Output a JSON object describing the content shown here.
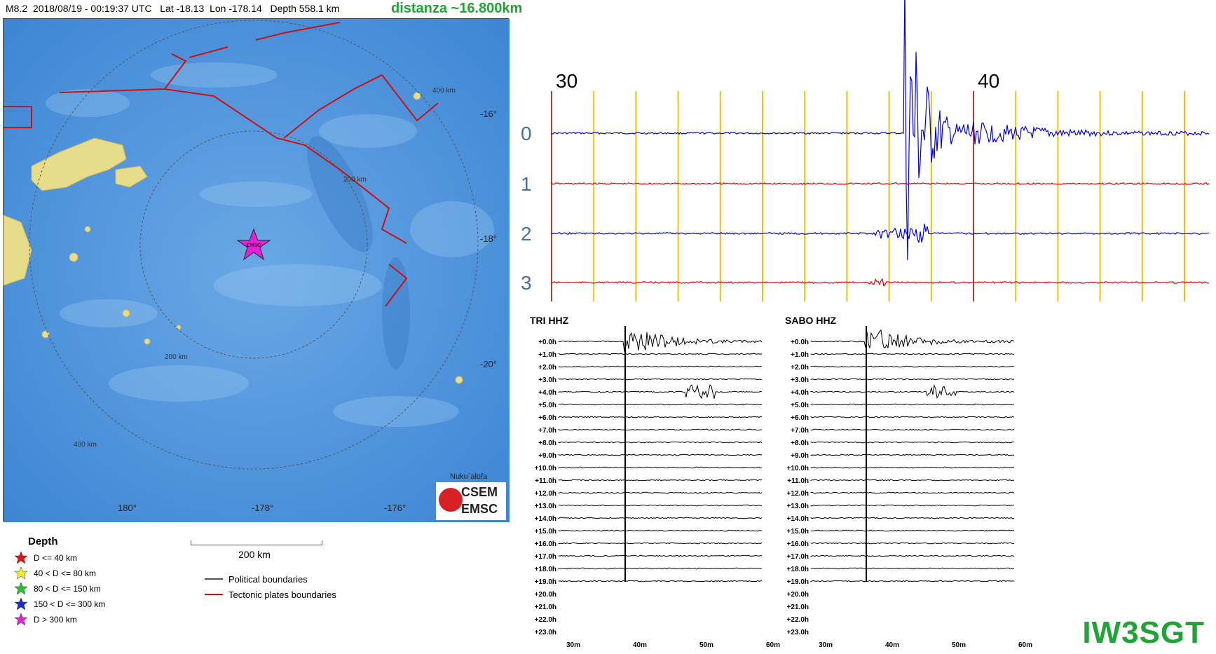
{
  "header": {
    "magnitude": "M8.2",
    "datetime": "2018/08/19 - 00:19:37 UTC",
    "lat": "Lat -18.13",
    "lon": "Lon -178.14",
    "depth": "Depth 558.1 km",
    "distance": "distanza ~16.800km"
  },
  "map": {
    "lat_labels": [
      "-16°",
      "-18°",
      "-20°"
    ],
    "lon_labels": [
      "180°",
      "-178°",
      "-176°"
    ],
    "ring_labels": [
      "400 km",
      "200 km",
      "200 km",
      "400 km"
    ],
    "epicenter_label": "EMSC",
    "city": "Nuku`alofa",
    "logo_line1": "CSEM",
    "logo_line2": "EMSC"
  },
  "legend": {
    "title": "Depth",
    "items": [
      {
        "label": "D <= 40 km",
        "color": "#e8121a"
      },
      {
        "label": "40 < D <= 80 km",
        "color": "#f2ee2a"
      },
      {
        "label": "80 < D <= 150 km",
        "color": "#22c42a"
      },
      {
        "label": "150 < D <= 300 km",
        "color": "#1c2bd6"
      },
      {
        "label": "D > 300 km",
        "color": "#e81fd6"
      }
    ]
  },
  "scale": {
    "label": "200 km"
  },
  "boundaries": {
    "political": "Political boundaries",
    "tectonic": "Tectonic plates boundaries",
    "political_color": "#555555",
    "tectonic_color": "#cc1111"
  },
  "seismogram": {
    "time_labels": [
      "30",
      "40"
    ],
    "channel_labels": [
      "0",
      "1",
      "2",
      "3"
    ],
    "channel_colors": [
      "#0000e0",
      "#e00000",
      "#0000e0",
      "#e00000"
    ]
  },
  "helicorders": [
    {
      "title": "TRI HHZ"
    },
    {
      "title": "SABO HHZ"
    }
  ],
  "helicorder_rows": [
    "+0.0h",
    "+1.0h",
    "+2.0h",
    "+3.0h",
    "+4.0h",
    "+5.0h",
    "+6.0h",
    "+7.0h",
    "+8.0h",
    "+9.0h",
    "+10.0h",
    "+11.0h",
    "+12.0h",
    "+13.0h",
    "+14.0h",
    "+15.0h",
    "+16.0h",
    "+17.0h",
    "+18.0h",
    "+19.0h",
    "+20.0h",
    "+21.0h",
    "+22.0h",
    "+23.0h"
  ],
  "helicorder_ticks": [
    "30m",
    "40m",
    "50m",
    "60m"
  ],
  "callsign": "IW3SGT"
}
